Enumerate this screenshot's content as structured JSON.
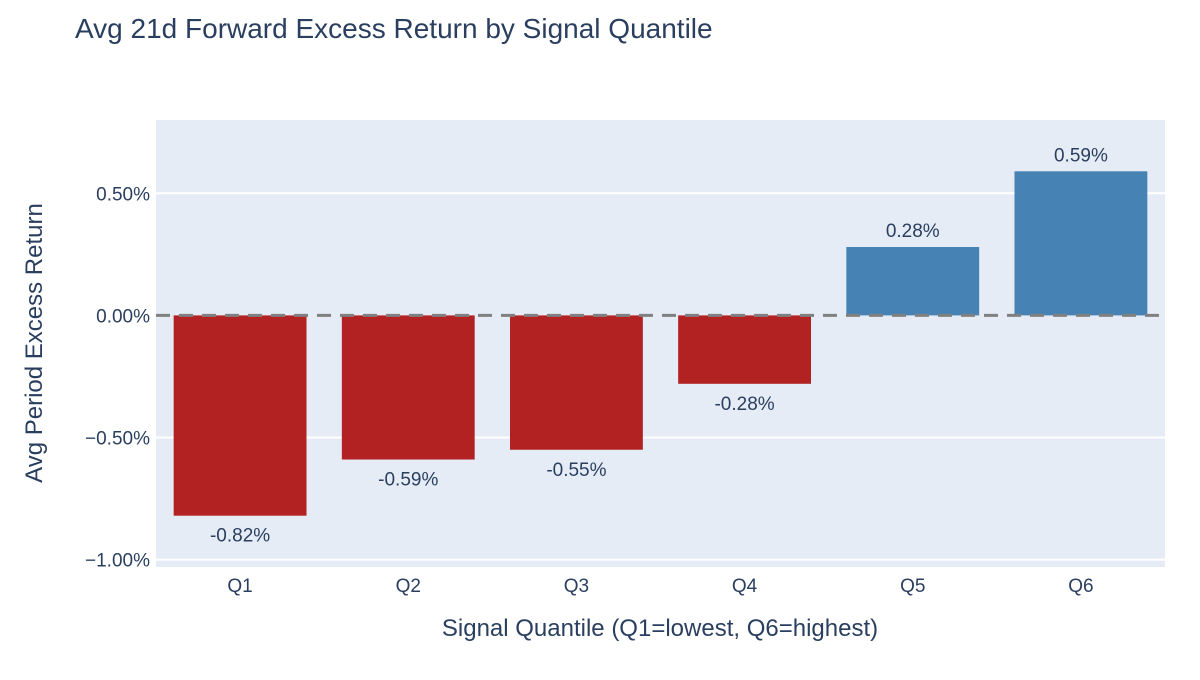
{
  "chart_data": {
    "type": "bar",
    "title": "Avg 21d Forward Excess Return by Signal Quantile",
    "xlabel": "Signal Quantile (Q1=lowest, Q6=highest)",
    "ylabel": "Avg Period Excess Return",
    "categories": [
      "Q1",
      "Q2",
      "Q3",
      "Q4",
      "Q5",
      "Q6"
    ],
    "values": [
      -0.82,
      -0.59,
      -0.55,
      -0.28,
      0.28,
      0.59
    ],
    "value_labels": [
      "-0.82%",
      "-0.59%",
      "-0.55%",
      "-0.28%",
      "0.28%",
      "0.59%"
    ],
    "y_unit": "%",
    "ylim": [
      -1.03,
      0.8
    ],
    "y_ticks": [
      0.5,
      0.0,
      -0.5,
      -1.0
    ],
    "y_tick_labels": [
      "0.50%",
      "0.00%",
      "−0.50%",
      "−1.00%"
    ],
    "reference_line": {
      "y": 0,
      "style": "dashed",
      "color": "#808080"
    },
    "grid": true,
    "legend": "none",
    "colors": {
      "negative": "#b22222",
      "positive": "#4682b4",
      "plot_background": "#e5ecf6",
      "gridline": "#ffffff",
      "text": "#2a3f5f"
    }
  }
}
